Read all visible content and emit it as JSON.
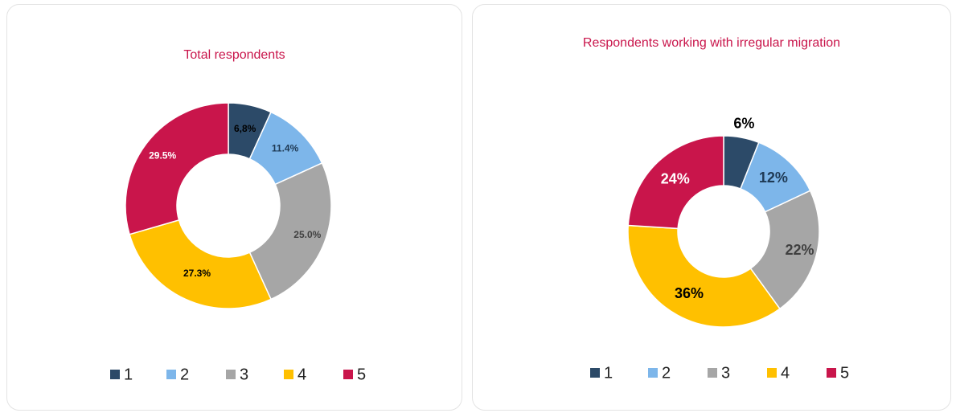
{
  "chart_data": [
    {
      "type": "donut",
      "title": "Total respondents",
      "categories": [
        "1",
        "2",
        "3",
        "4",
        "5"
      ],
      "values": [
        6.8,
        11.4,
        25.0,
        27.3,
        29.5
      ],
      "value_labels": [
        "6,8%",
        "11.4%",
        "25.0%",
        "27.3%",
        "29.5%"
      ],
      "colors": [
        "#2c4a68",
        "#7db6ea",
        "#a6a6a6",
        "#ffc000",
        "#c9154b"
      ],
      "label_colors": [
        "#000000",
        "#1f3a55",
        "#404040",
        "#000000",
        "#ffffff"
      ],
      "legend": "bottom"
    },
    {
      "type": "donut",
      "title": "Respondents working with irregular migration",
      "categories": [
        "1",
        "2",
        "3",
        "4",
        "5"
      ],
      "values": [
        6,
        12,
        22,
        36,
        24
      ],
      "value_labels": [
        "6%",
        "12%",
        "22%",
        "36%",
        "24%"
      ],
      "colors": [
        "#2c4a68",
        "#7db6ea",
        "#a6a6a6",
        "#ffc000",
        "#c9154b"
      ],
      "label_colors": [
        "#000000",
        "#1f3a55",
        "#404040",
        "#000000",
        "#ffffff"
      ],
      "legend": "bottom"
    }
  ]
}
